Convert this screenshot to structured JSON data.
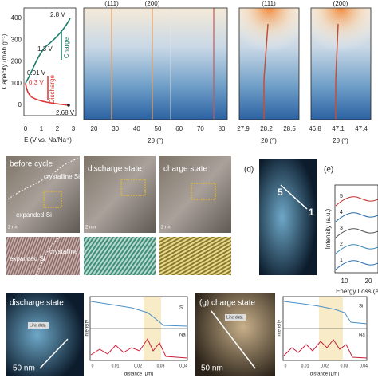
{
  "panel_a": {
    "y_label": "Capacity (mAh g⁻¹)",
    "yticks": [
      0,
      100,
      200,
      300,
      400
    ],
    "xticks": [
      0,
      1,
      2,
      3
    ],
    "x_label": "E (V vs. Na/Na⁺)",
    "annotations": {
      "v_top": "2.8 V",
      "v_mid": "1.3 V",
      "charge": "Charge",
      "v_low": "0.01 V",
      "v_dis": "0.3 V",
      "discharge": "Discharge",
      "v_end": "2.68 V"
    }
  },
  "panel_heatmap": {
    "peaks": [
      "(111)",
      "(200)"
    ],
    "xticks": [
      20,
      30,
      40,
      50,
      60,
      70,
      80
    ],
    "x_label": "2θ (°)"
  },
  "panel_zoom111": {
    "title": "(111)",
    "xticks": [
      27.9,
      28.2,
      28.5
    ],
    "x_label": "2θ (°)"
  },
  "panel_zoom200": {
    "title": "(200)",
    "xticks": [
      46.8,
      47.1,
      47.4
    ],
    "x_label": "2θ (°)"
  },
  "panel_tem": {
    "before": "before cycle",
    "crystalline": "crystalline Si",
    "expanded": "expanded-Si",
    "discharge": "discharge state",
    "charge": "charge state",
    "scale": "2 nm",
    "strip_expanded": "expanded Si",
    "strip_crystalline": "crystalline Si"
  },
  "panel_d": {
    "letter": "(d)",
    "start": "5",
    "end": "1"
  },
  "panel_e": {
    "letter": "(e)",
    "spectra": [
      "5",
      "4",
      "3",
      "2",
      "1"
    ],
    "y_label": "Intensity (a.u.)",
    "xticks": [
      10,
      20
    ],
    "x_label": "Energy Loss (e"
  },
  "panel_f": {
    "title": "discharge state",
    "scale": "50 nm",
    "line_tag": "Line data",
    "si": "Si",
    "na": "Na",
    "y_label": "Intensity",
    "xticks": [
      0,
      0.01,
      0.02,
      0.03,
      0.04
    ],
    "x_label": "distance (μm)"
  },
  "panel_g": {
    "title": "(g) charge state",
    "scale": "50 nm",
    "line_tag": "Line data",
    "si": "Si",
    "na": "Na",
    "y_label": "Intensity",
    "xticks": [
      0,
      0.01,
      0.02,
      0.03,
      0.04
    ],
    "x_label": "distance (μm)"
  }
}
